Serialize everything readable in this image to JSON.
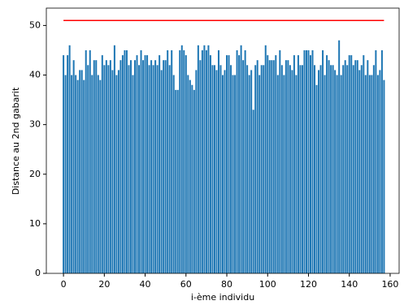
{
  "chart_data": {
    "type": "bar",
    "x_label": "i-ème individu",
    "y_label": "Distance au 2nd gabarit",
    "color": "#1f77b4",
    "x": [
      0,
      1,
      2,
      3,
      4,
      5,
      6,
      7,
      8,
      9,
      10,
      11,
      12,
      13,
      14,
      15,
      16,
      17,
      18,
      19,
      20,
      21,
      22,
      23,
      24,
      25,
      26,
      27,
      28,
      29,
      30,
      31,
      32,
      33,
      34,
      35,
      36,
      37,
      38,
      39,
      40,
      41,
      42,
      43,
      44,
      45,
      46,
      47,
      48,
      49,
      50,
      51,
      52,
      53,
      54,
      55,
      56,
      57,
      58,
      59,
      60,
      61,
      62,
      63,
      64,
      65,
      66,
      67,
      68,
      69,
      70,
      71,
      72,
      73,
      74,
      75,
      76,
      77,
      78,
      79,
      80,
      81,
      82,
      83,
      84,
      85,
      86,
      87,
      88,
      89,
      90,
      91,
      92,
      93,
      94,
      95,
      96,
      97,
      98,
      99,
      100,
      101,
      102,
      103,
      104,
      105,
      106,
      107,
      108,
      109,
      110,
      111,
      112,
      113,
      114,
      115,
      116,
      117,
      118,
      119,
      120,
      121,
      122,
      123,
      124,
      125,
      126,
      127,
      128,
      129,
      130,
      131,
      132,
      133,
      134,
      135,
      136,
      137,
      138,
      139,
      140,
      141,
      142,
      143,
      144,
      145,
      146,
      147,
      148,
      149,
      150,
      151,
      152,
      153,
      154,
      155,
      156,
      157
    ],
    "values": [
      44,
      40,
      44,
      46,
      40,
      43,
      40,
      39,
      41,
      41,
      39,
      45,
      42,
      45,
      40,
      43,
      43,
      40,
      39,
      44,
      42,
      43,
      42,
      43,
      41,
      46,
      40,
      41,
      43,
      44,
      45,
      45,
      42,
      43,
      40,
      43,
      44,
      42,
      45,
      43,
      44,
      44,
      42,
      43,
      42,
      43,
      42,
      44,
      41,
      43,
      43,
      45,
      42,
      45,
      40,
      37,
      37,
      45,
      46,
      45,
      44,
      40,
      39,
      38,
      37,
      41,
      46,
      43,
      45,
      46,
      45,
      46,
      44,
      42,
      42,
      41,
      45,
      42,
      40,
      41,
      44,
      44,
      42,
      40,
      40,
      45,
      44,
      46,
      43,
      45,
      42,
      40,
      41,
      33,
      42,
      43,
      40,
      42,
      42,
      46,
      44,
      43,
      43,
      43,
      44,
      40,
      45,
      42,
      40,
      43,
      43,
      42,
      41,
      44,
      40,
      44,
      42,
      42,
      45,
      45,
      45,
      44,
      45,
      42,
      38,
      41,
      42,
      45,
      40,
      44,
      43,
      42,
      42,
      41,
      40,
      47,
      40,
      42,
      43,
      42,
      44,
      44,
      42,
      43,
      43,
      41,
      42,
      44,
      40,
      43,
      40,
      40,
      42,
      45,
      40,
      41,
      45,
      39
    ],
    "reference_line": {
      "y": 51,
      "x": [
        0,
        157
      ],
      "color": "#ff0000"
    },
    "xlim": [
      -8.4,
      164.4
    ],
    "ylim": [
      0,
      53.5
    ],
    "xticks": [
      0,
      20,
      40,
      60,
      80,
      100,
      120,
      140,
      160
    ],
    "yticks": [
      0,
      10,
      20,
      30,
      40,
      50
    ]
  }
}
